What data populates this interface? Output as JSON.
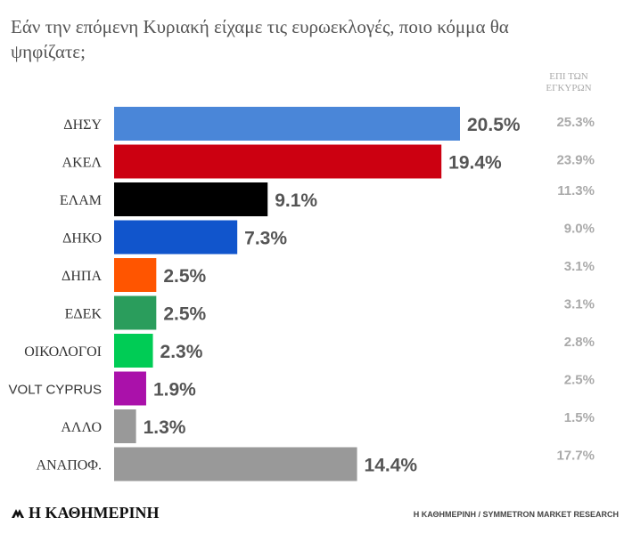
{
  "chart_data": {
    "type": "bar",
    "orientation": "horizontal",
    "title": "Εάν την επόμενη Κυριακή είχαμε τις ευρωεκλογές, ποιο κόμμα θα ψηφίζατε;",
    "categories": [
      "ΔΗΣΥ",
      "ΑΚΕΛ",
      "ΕΛΑΜ",
      "ΔΗΚΟ",
      "ΔΗΠΑ",
      "ΕΔΕΚ",
      "ΟΙΚΟΛΟΓΟΙ",
      "VOLT CYPRUS",
      "ΑΛΛΟ",
      "ΑΝΑΠΟΦ."
    ],
    "values": [
      20.5,
      19.4,
      9.1,
      7.3,
      2.5,
      2.5,
      2.3,
      1.9,
      1.3,
      14.4
    ],
    "value_labels": [
      "20.5%",
      "19.4%",
      "9.1%",
      "7.3%",
      "2.5%",
      "2.5%",
      "2.3%",
      "1.9%",
      "1.3%",
      "14.4%"
    ],
    "colors": [
      "#4a86d8",
      "#cc0011",
      "#000000",
      "#1155cc",
      "#ff5500",
      "#2a9d5c",
      "#00cc55",
      "#aa11aa",
      "#999999",
      "#999999"
    ],
    "valid_header": "ΕΠΙ ΤΩΝ ΕΓΚΥΡΩΝ",
    "valid_values": [
      25.3,
      23.9,
      11.3,
      9.0,
      3.1,
      3.1,
      2.8,
      2.5,
      1.5,
      17.7
    ],
    "valid_labels": [
      "25.3%",
      "23.9%",
      "11.3%",
      "9.0%",
      "3.1%",
      "3.1%",
      "2.8%",
      "2.5%",
      "1.5%",
      "17.7%"
    ],
    "xlim": [
      0,
      20.5
    ],
    "grid": false,
    "legend": "none"
  },
  "footer": {
    "logo_text": "Η ΚΑΘΗΜΕΡΙΝΗ",
    "source": "Η ΚΑΘΗΜΕΡΙΝΗ / SYMMETRON MARKET RESEARCH"
  }
}
